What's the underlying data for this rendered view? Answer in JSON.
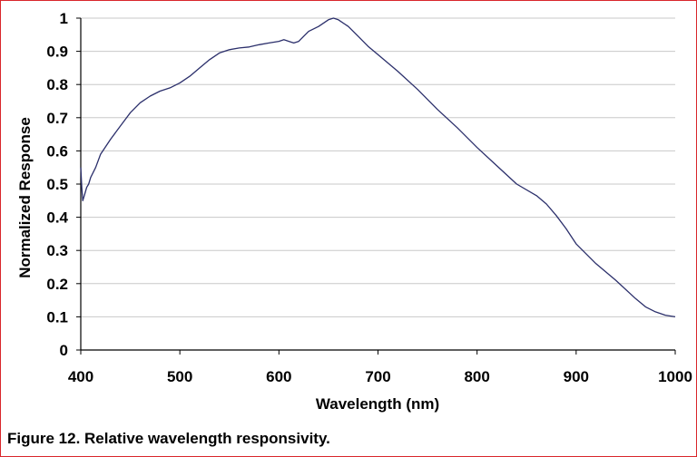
{
  "caption": "Figure 12. Relative wavelength responsivity.",
  "colors": {
    "line": "#2b2f6b",
    "grid": "#c8c8c8",
    "frame": "#d9262b",
    "axis": "#000000"
  },
  "chart_data": {
    "type": "line",
    "title": "",
    "xlabel": "Wavelength (nm)",
    "ylabel": "Normalized Response",
    "xlim": [
      400,
      1000
    ],
    "ylim": [
      0,
      1
    ],
    "xticks": [
      400,
      500,
      600,
      700,
      800,
      900,
      1000
    ],
    "xtick_labels": [
      "400",
      "500",
      "600",
      "700",
      "800",
      "900",
      "1000"
    ],
    "yticks": [
      0,
      0.1,
      0.2,
      0.3,
      0.4,
      0.5,
      0.6,
      0.7,
      0.8,
      0.9,
      1
    ],
    "ytick_labels": [
      "0",
      "0.1",
      "0.2",
      "0.3",
      "0.4",
      "0.5",
      "0.6",
      "0.7",
      "0.8",
      "0.9",
      "1"
    ],
    "grid": true,
    "series": [
      {
        "name": "Normalized Response",
        "x": [
          400,
          401,
          402,
          404,
          406,
          408,
          410,
          415,
          420,
          430,
          440,
          450,
          460,
          470,
          480,
          490,
          500,
          510,
          520,
          530,
          540,
          550,
          560,
          570,
          580,
          590,
          600,
          605,
          610,
          615,
          620,
          625,
          630,
          640,
          650,
          655,
          660,
          670,
          680,
          690,
          700,
          720,
          740,
          760,
          780,
          800,
          820,
          840,
          860,
          870,
          880,
          890,
          900,
          920,
          940,
          960,
          970,
          980,
          990,
          1000
        ],
        "y": [
          0.55,
          0.49,
          0.45,
          0.47,
          0.49,
          0.5,
          0.52,
          0.55,
          0.59,
          0.635,
          0.675,
          0.715,
          0.745,
          0.765,
          0.78,
          0.79,
          0.805,
          0.825,
          0.85,
          0.875,
          0.895,
          0.905,
          0.91,
          0.913,
          0.92,
          0.925,
          0.93,
          0.935,
          0.93,
          0.925,
          0.93,
          0.945,
          0.96,
          0.975,
          0.995,
          1.0,
          0.995,
          0.975,
          0.945,
          0.915,
          0.89,
          0.84,
          0.785,
          0.725,
          0.67,
          0.61,
          0.555,
          0.5,
          0.465,
          0.44,
          0.405,
          0.365,
          0.32,
          0.26,
          0.21,
          0.155,
          0.13,
          0.115,
          0.105,
          0.1
        ]
      }
    ]
  }
}
